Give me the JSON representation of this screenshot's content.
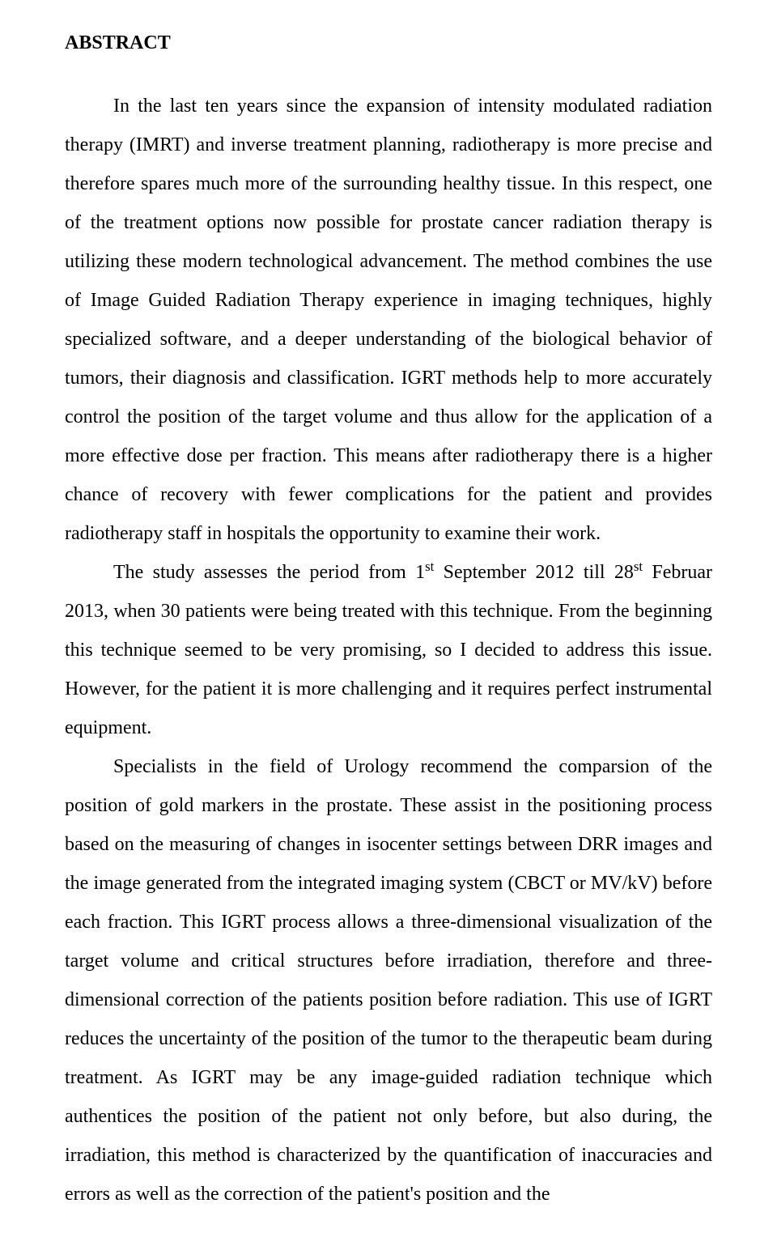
{
  "document": {
    "heading": "ABSTRACT",
    "paragraphs": {
      "p1": "In the last ten years since the expansion of intensity modulated radiation therapy (IMRT) and inverse treatment planning, radiotherapy is more precise and therefore spares much more of the surrounding healthy tissue. In this respect, one of the treatment options now possible for prostate cancer radiation therapy is utilizing these modern technological advancement. The method combines the use of Image Guided Radiation Therapy experience in imaging techniques, highly specialized software, and a deeper understanding of the biological behavior of tumors, their diagnosis and classification. IGRT methods help to more accurately control the position of the target volume and thus allow for the application of a more effective dose per fraction. This means after radiotherapy there is a higher chance of recovery with fewer complications for the patient and provides radiotherapy staff in hospitals the opportunity to examine their work.",
      "p2_part1": "The study assesses the period from 1",
      "p2_sup1": "st",
      "p2_part2": " September 2012 till 28",
      "p2_sup2": "st",
      "p2_part3": " Februar 2013, when 30 patients were being treated with this technique. From the beginning this technique seemed to be very promising, so I decided to address this issue. However, for the patient it is more challenging and it requires perfect instrumental equipment.",
      "p3": "Specialists in the field of Urology recommend the comparsion of the position of gold markers in the prostate. These assist in the positioning process based on the measuring of changes in isocenter settings between DRR images and the image generated from the integrated imaging system (CBCT or MV/kV) before each fraction. This IGRT process allows a three-dimensional visualization of the target volume and critical structures before irradiation, therefore and three-dimensional correction of the patients position before radiation. This use of IGRT reduces the uncertainty of the position of the tumor to the therapeutic beam during treatment. As IGRT may be any image-guided radiation technique which authentices the position of the patient not only before, but also during, the irradiation, this method is characterized by the quantification of inaccuracies and errors as well as the correction of the patient's position and the"
    }
  },
  "styles": {
    "background_color": "#ffffff",
    "text_color": "#000000",
    "font_family": "Times New Roman",
    "heading_fontsize": 24,
    "body_fontsize": 24,
    "line_height": 2.0,
    "text_indent": 60
  }
}
